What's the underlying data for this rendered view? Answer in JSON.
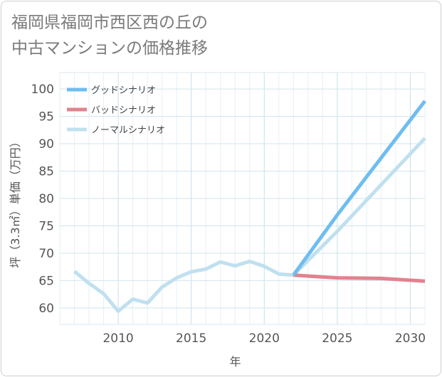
{
  "title_lines": [
    "福岡県福岡市西区西の丘の",
    "中古マンションの価格推移"
  ],
  "chart_data": {
    "type": "line",
    "title": "福岡県福岡市西区西の丘の中古マンションの価格推移",
    "xlabel": "年",
    "ylabel": "坪（3.3㎡）単価（万円）",
    "xlim": [
      2006,
      2031
    ],
    "ylim": [
      57,
      103
    ],
    "xticks": [
      2010,
      2015,
      2020,
      2025,
      2030
    ],
    "yticks": [
      60,
      65,
      70,
      75,
      80,
      85,
      90,
      95,
      100
    ],
    "grid": true,
    "legend_position": "top-left",
    "series": [
      {
        "name": "ノーマルシナリオ",
        "color": "#c0e0ef",
        "x": [
          2007,
          2008,
          2009,
          2010,
          2011,
          2012,
          2013,
          2014,
          2015,
          2016,
          2017,
          2018,
          2019,
          2020,
          2021,
          2022,
          2025,
          2031
        ],
        "values": [
          66.7,
          64.5,
          62.6,
          59.4,
          61.6,
          60.9,
          63.8,
          65.5,
          66.6,
          67.1,
          68.4,
          67.7,
          68.5,
          67.6,
          66.2,
          66.0,
          74.0,
          91.0
        ]
      },
      {
        "name": "バッドシナリオ",
        "color": "#e0838f",
        "x": [
          2022,
          2025,
          2028,
          2031
        ],
        "values": [
          66.0,
          65.5,
          65.4,
          64.9
        ]
      },
      {
        "name": "グッドシナリオ",
        "color": "#6fbdf0",
        "x": [
          2022,
          2025,
          2031
        ],
        "values": [
          66.0,
          77.0,
          97.8
        ]
      }
    ],
    "legend": [
      {
        "name": "グッドシナリオ",
        "color": "#6fbdf0"
      },
      {
        "name": "バッドシナリオ",
        "color": "#e0838f"
      },
      {
        "name": "ノーマルシナリオ",
        "color": "#c0e0ef"
      }
    ]
  }
}
